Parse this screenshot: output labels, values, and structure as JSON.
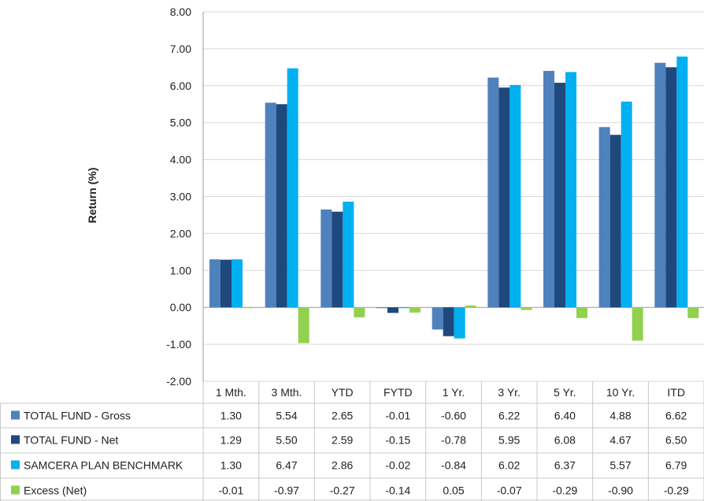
{
  "chart_data": {
    "type": "bar",
    "ylabel": "Return (%)",
    "ylim": [
      -2,
      8
    ],
    "yticks": [
      "8.00",
      "7.00",
      "6.00",
      "5.00",
      "4.00",
      "3.00",
      "2.00",
      "1.00",
      "0.00",
      "-1.00",
      "-2.00"
    ],
    "ytick_values": [
      8,
      7,
      6,
      5,
      4,
      3,
      2,
      1,
      0,
      -1,
      -2
    ],
    "negative_tick_color": "#cc0000",
    "categories": [
      "1 Mth.",
      "3 Mth.",
      "YTD",
      "FYTD",
      "1 Yr.",
      "3 Yr.",
      "5 Yr.",
      "10 Yr.",
      "ITD"
    ],
    "series": [
      {
        "name": "TOTAL FUND - Gross",
        "color": "#4f81bd",
        "values": [
          1.3,
          5.54,
          2.65,
          -0.01,
          -0.6,
          6.22,
          6.4,
          4.88,
          6.62
        ],
        "labels": [
          "1.30",
          "5.54",
          "2.65",
          "-0.01",
          "-0.60",
          "6.22",
          "6.40",
          "4.88",
          "6.62"
        ]
      },
      {
        "name": "TOTAL FUND - Net",
        "color": "#1f497d",
        "values": [
          1.29,
          5.5,
          2.59,
          -0.15,
          -0.78,
          5.95,
          6.08,
          4.67,
          6.5
        ],
        "labels": [
          "1.29",
          "5.50",
          "2.59",
          "-0.15",
          "-0.78",
          "5.95",
          "6.08",
          "4.67",
          "6.50"
        ]
      },
      {
        "name": "SAMCERA PLAN BENCHMARK",
        "color": "#00b0f0",
        "values": [
          1.3,
          6.47,
          2.86,
          -0.02,
          -0.84,
          6.02,
          6.37,
          5.57,
          6.79
        ],
        "labels": [
          "1.30",
          "6.47",
          "2.86",
          "-0.02",
          "-0.84",
          "6.02",
          "6.37",
          "5.57",
          "6.79"
        ]
      },
      {
        "name": "Excess (Net)",
        "color": "#92d050",
        "values": [
          -0.01,
          -0.97,
          -0.27,
          -0.14,
          0.05,
          -0.07,
          -0.29,
          -0.9,
          -0.29
        ],
        "labels": [
          "-0.01",
          "-0.97",
          "-0.27",
          "-0.14",
          "0.05",
          "-0.07",
          "-0.29",
          "-0.90",
          "-0.29"
        ]
      }
    ],
    "grid": true,
    "legend": "data-table"
  }
}
